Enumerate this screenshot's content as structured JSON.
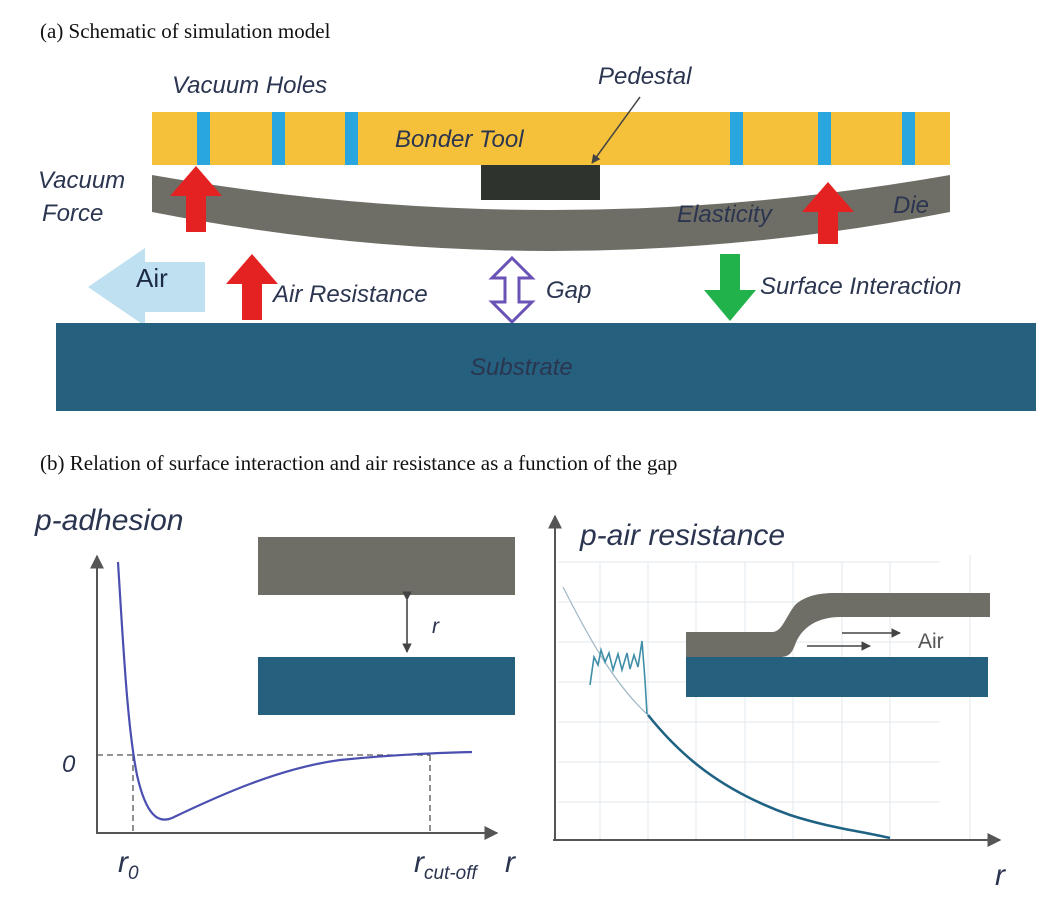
{
  "panel_a": {
    "caption": "(a) Schematic of simulation model",
    "labels": {
      "vacuum_holes": "Vacuum Holes",
      "pedestal": "Pedestal",
      "bonder_tool": "Bonder Tool",
      "vacuum": "Vacuum",
      "force": "Force",
      "elasticity": "Elasticity",
      "die": "Die",
      "air": "Air",
      "air_resistance": "Air Resistance",
      "gap": "Gap",
      "surface_interaction": "Surface Interaction",
      "substrate": "Substrate"
    },
    "colors": {
      "bonder_tool": "#f5c13a",
      "vacuum_hole": "#2aa6df",
      "pedestal": "#2f332e",
      "die": "#6f6e66",
      "force_arrow": "#e52222",
      "air_arrow": "#bfe0f0",
      "gap_arrow": "#6a52b6",
      "surface_arrow": "#22b24c",
      "substrate": "#25607e"
    }
  },
  "panel_b": {
    "caption": "(b) Relation of surface interaction  and air resistance as a function of the gap",
    "left": {
      "ylabel": "p-adhesion",
      "zero": "0",
      "r0": "r",
      "r0_sub": "0",
      "rcut": "r",
      "rcut_sub": "cut-off",
      "xlabel": "r",
      "inset_label": "r"
    },
    "right": {
      "ylabel": "p-air resistance",
      "xlabel": "r",
      "inset_label": "Air"
    }
  }
}
